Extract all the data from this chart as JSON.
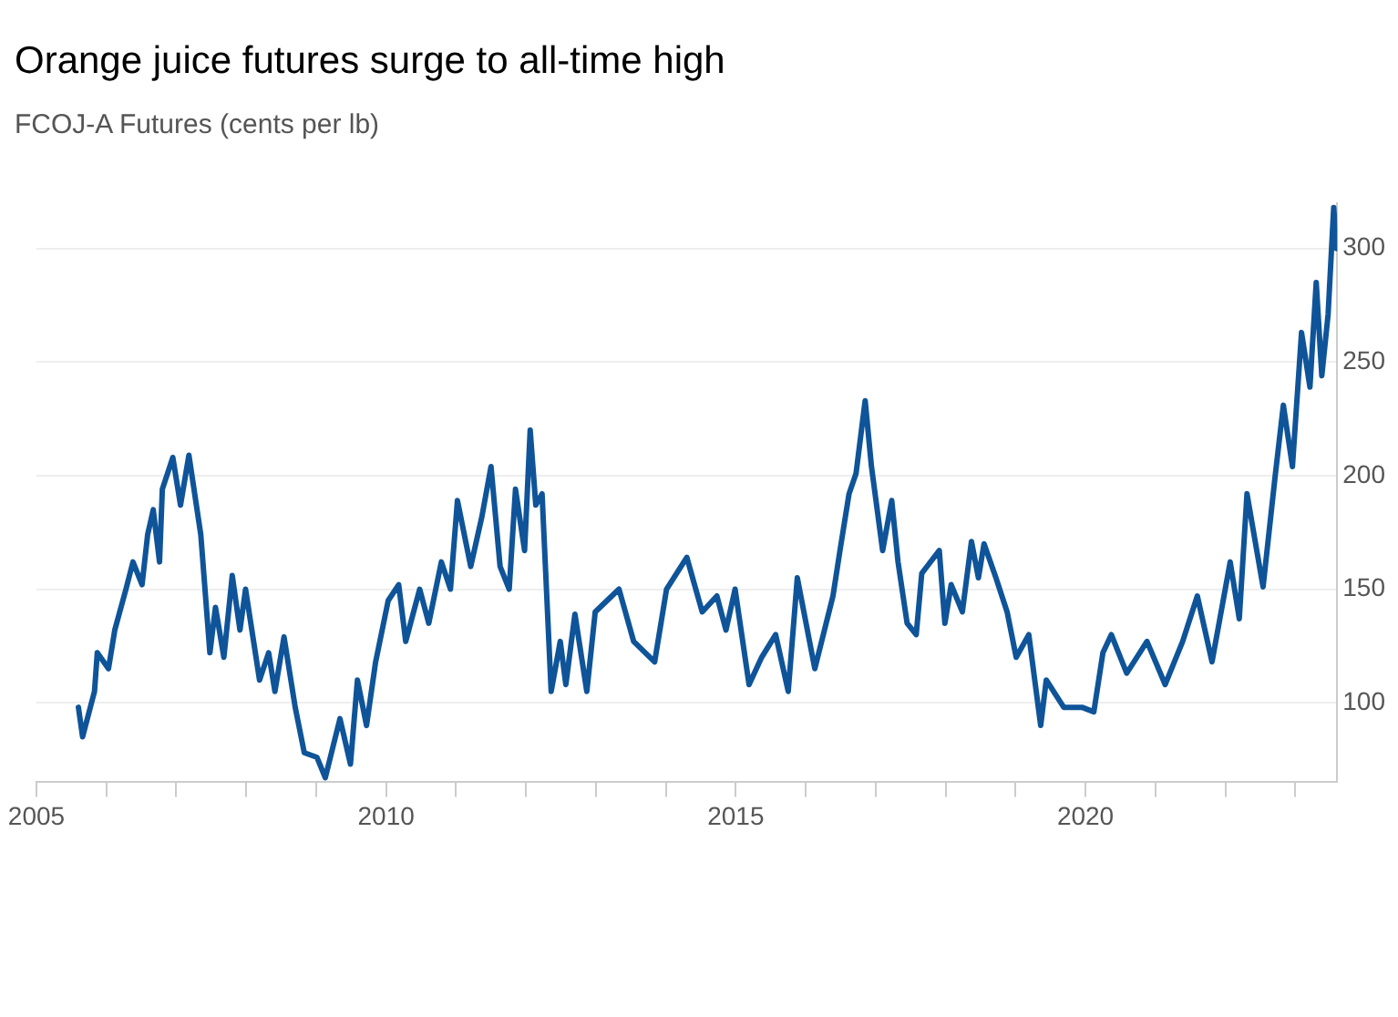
{
  "chart_data": {
    "type": "line",
    "title": "Orange juice futures surge to all-time high",
    "subtitle": "FCOJ-A Futures (cents per lb)",
    "x": [
      2005.6,
      2005.66,
      2005.83,
      2005.87,
      2006.03,
      2006.12,
      2006.28,
      2006.38,
      2006.51,
      2006.59,
      2006.67,
      2006.76,
      2006.8,
      2006.95,
      2007.06,
      2007.18,
      2007.35,
      2007.48,
      2007.56,
      2007.68,
      2007.8,
      2007.91,
      2007.99,
      2008.19,
      2008.32,
      2008.41,
      2008.54,
      2008.7,
      2008.83,
      2009.01,
      2009.13,
      2009.34,
      2009.49,
      2009.59,
      2009.72,
      2009.85,
      2010.03,
      2010.18,
      2010.28,
      2010.48,
      2010.61,
      2010.79,
      2010.92,
      2011.02,
      2011.21,
      2011.37,
      2011.5,
      2011.63,
      2011.76,
      2011.85,
      2011.98,
      2012.06,
      2012.14,
      2012.23,
      2012.36,
      2012.49,
      2012.57,
      2012.7,
      2012.87,
      2012.99,
      2013.33,
      2013.54,
      2013.84,
      2014.01,
      2014.3,
      2014.52,
      2014.73,
      2014.86,
      2014.99,
      2015.19,
      2015.37,
      2015.57,
      2015.75,
      2015.88,
      2016.13,
      2016.39,
      2016.49,
      2016.62,
      2016.72,
      2016.85,
      2016.94,
      2017.1,
      2017.23,
      2017.32,
      2017.45,
      2017.58,
      2017.66,
      2017.91,
      2017.99,
      2018.08,
      2018.24,
      2018.37,
      2018.47,
      2018.55,
      2018.72,
      2018.88,
      2019.01,
      2019.19,
      2019.36,
      2019.44,
      2019.69,
      2019.95,
      2020.12,
      2020.25,
      2020.37,
      2020.59,
      2020.88,
      2021.14,
      2021.39,
      2021.6,
      2021.81,
      2022.07,
      2022.2,
      2022.31,
      2022.45,
      2022.54,
      2022.71,
      2022.83,
      2022.96,
      2023.09,
      2023.21,
      2023.3,
      2023.38,
      2023.47,
      2023.55,
      2023.59
    ],
    "series": [
      {
        "color": "#0f5499",
        "values": [
          98,
          85,
          105,
          122,
          115,
          132,
          150,
          162,
          152,
          174,
          185,
          162,
          194,
          208,
          187,
          209,
          174,
          122,
          142,
          120,
          156,
          132,
          150,
          110,
          122,
          105,
          129,
          98,
          78,
          76,
          67,
          93,
          73,
          110,
          90,
          118,
          145,
          152,
          127,
          150,
          135,
          162,
          150,
          189,
          160,
          182,
          204,
          160,
          150,
          194,
          167,
          220,
          187,
          192,
          105,
          127,
          108,
          139,
          105,
          140,
          150,
          127,
          118,
          150,
          164,
          140,
          147,
          132,
          150,
          108,
          120,
          130,
          105,
          155,
          115,
          147,
          167,
          192,
          201,
          233,
          204,
          167,
          189,
          162,
          135,
          130,
          157,
          167,
          135,
          152,
          140,
          171,
          155,
          170,
          155,
          140,
          120,
          130,
          90,
          110,
          98,
          98,
          96,
          122,
          130,
          113,
          127,
          108,
          127,
          147,
          118,
          162,
          137,
          192,
          167,
          151,
          199,
          231,
          204,
          263,
          239,
          285,
          244,
          271,
          318,
          300
        ]
      }
    ],
    "xlim": [
      2005,
      2023.6
    ],
    "xticks": [
      2005,
      {
        "value": 2006,
        "label": null
      },
      {
        "value": 2007,
        "label": null
      },
      {
        "value": 2008,
        "label": null
      },
      {
        "value": 2009,
        "label": null
      },
      2010,
      {
        "value": 2011,
        "label": null
      },
      {
        "value": 2012,
        "label": null
      },
      {
        "value": 2013,
        "label": null
      },
      {
        "value": 2014,
        "label": null
      },
      2015,
      {
        "value": 2016,
        "label": null
      },
      {
        "value": 2017,
        "label": null
      },
      {
        "value": 2018,
        "label": null
      },
      {
        "value": 2019,
        "label": null
      },
      2020,
      {
        "value": 2021,
        "label": null
      },
      {
        "value": 2022,
        "label": null
      },
      {
        "value": 2023,
        "label": null
      }
    ],
    "ylim": [
      65,
      320
    ],
    "yticks": [
      100,
      150,
      200,
      250,
      300
    ],
    "grid": "y",
    "legend": false,
    "marker": "none",
    "line_style": "solid"
  }
}
